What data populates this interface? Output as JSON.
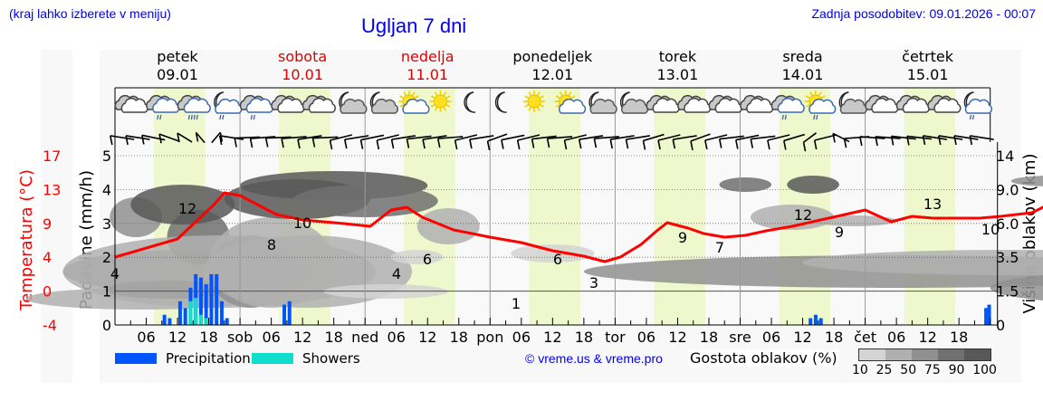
{
  "header": {
    "hint": "(kraj lahko izberete v meniju)",
    "title": "Ugljan 7 dni",
    "last_update": "Zadnja posodobitev: 09.01.2026 - 00:07"
  },
  "days": [
    {
      "name": "petek",
      "date": "09.01",
      "weekend": false,
      "abbr": ""
    },
    {
      "name": "sobota",
      "date": "10.01",
      "weekend": true,
      "abbr": "sob"
    },
    {
      "name": "nedelja",
      "date": "11.01",
      "weekend": true,
      "abbr": "ned"
    },
    {
      "name": "ponedeljek",
      "date": "12.01",
      "weekend": false,
      "abbr": "pon"
    },
    {
      "name": "torek",
      "date": "13.01",
      "weekend": false,
      "abbr": "tor"
    },
    {
      "name": "sreda",
      "date": "14.01",
      "weekend": false,
      "abbr": "sre"
    },
    {
      "name": "četrtek",
      "date": "15.01",
      "weekend": false,
      "abbr": "čet"
    }
  ],
  "weather_icons": [
    "cloudy",
    "cloudy-rain",
    "cloudy-heavy-rain",
    "night-cloud-rain",
    "cloudy-rain",
    "cloudy",
    "cloudy",
    "night-cloud",
    "night-cloud",
    "sun-cloud",
    "sun",
    "moon",
    "moon",
    "sun",
    "sun-cloud",
    "night-cloud",
    "night-cloud",
    "cloudy",
    "cloudy",
    "cloudy",
    "cloudy",
    "cloudy-rain",
    "sun-cloud-rain",
    "night-cloud",
    "cloudy",
    "cloudy",
    "cloudy",
    "night-cloud-rain"
  ],
  "axes": {
    "temp_title": "Temperatura (°C)",
    "temp_ticks": [
      "17",
      "13",
      "9",
      "4",
      "0",
      "-4"
    ],
    "precip_title": "Padavine (mm/h)",
    "precip_ticks": [
      "5",
      "4",
      "3",
      "2",
      "1",
      "0"
    ],
    "cloud_title": "Višina oblakov (km)",
    "cloud_ticks": [
      "14",
      "9.0",
      "6.0",
      "3.5",
      "1.5",
      "0"
    ],
    "hour_ticks": [
      "06",
      "12",
      "18"
    ]
  },
  "legend": {
    "precipitation": "Precipitation",
    "showers": "Showers",
    "precipitation_color": "#0055ff",
    "showers_color": "#11ddcc",
    "copyright": "© vreme.us & vreme.pro",
    "density_label": "Gostota oblakov (%)",
    "density_ticks": [
      "10",
      "25",
      "50",
      "75",
      "90",
      "100"
    ],
    "density_colors": [
      "#d4d4d4",
      "#b0b0b0",
      "#909090",
      "#707070",
      "#585858"
    ]
  },
  "chart_data": {
    "type": "line",
    "title": "Ugljan 7 dni",
    "xlabel": "",
    "ylabel": "Temperatura (°C)",
    "x": [
      "09.01 00",
      "09.01 06",
      "09.01 12",
      "09.01 18",
      "10.01 00",
      "10.01 06",
      "10.01 12",
      "10.01 18",
      "11.01 00",
      "11.01 06",
      "11.01 12",
      "11.01 18",
      "12.01 00",
      "12.01 06",
      "12.01 12",
      "12.01 18",
      "13.01 00",
      "13.01 06",
      "13.01 12",
      "13.01 18",
      "14.01 00",
      "14.01 06",
      "14.01 12",
      "14.01 18",
      "15.01 00",
      "15.01 06",
      "15.01 12",
      "15.01 18",
      "16.01 00"
    ],
    "series": [
      {
        "name": "Temperatura (°C)",
        "values": [
          4,
          6,
          12,
          11,
          8,
          8,
          10,
          7,
          5,
          4,
          6,
          2,
          1,
          1,
          6,
          3,
          4,
          6,
          9,
          7,
          7,
          8,
          12,
          9,
          10,
          10,
          13,
          10,
          10
        ]
      },
      {
        "name": "Precipitation (mm/h)",
        "values": [
          0,
          0,
          0.3,
          1.5,
          0.7,
          0,
          0,
          0,
          0,
          0,
          0,
          0,
          0,
          0,
          0,
          0,
          0,
          0,
          0,
          0,
          0,
          0,
          0.2,
          0,
          0,
          0,
          0,
          0,
          0.6
        ]
      },
      {
        "name": "Showers (mm/h)",
        "values": [
          0,
          0,
          0,
          0.8,
          0,
          0,
          0,
          0,
          0,
          0,
          0,
          0,
          0,
          0,
          0,
          0,
          0,
          0,
          0,
          0,
          0,
          0,
          0,
          0,
          0,
          0,
          0,
          0,
          0
        ]
      }
    ],
    "temp_labels": [
      {
        "at": "09.01 00",
        "value": 4
      },
      {
        "at": "09.01 14",
        "value": 12
      },
      {
        "at": "10.01 06",
        "value": 8
      },
      {
        "at": "10.01 12",
        "value": 10
      },
      {
        "at": "11.01 01",
        "value": 4
      },
      {
        "at": "11.01 12",
        "value": 6
      },
      {
        "at": "12.01 03",
        "value": 1
      },
      {
        "at": "12.01 12",
        "value": 6
      },
      {
        "at": "12.01 20",
        "value": 3
      },
      {
        "at": "13.01 13",
        "value": 9
      },
      {
        "at": "13.01 19",
        "value": 7
      },
      {
        "at": "14.01 12",
        "value": 12
      },
      {
        "at": "14.01 20",
        "value": 9
      },
      {
        "at": "15.01 12",
        "value": 13
      },
      {
        "at": "15.01 23",
        "value": 10
      }
    ],
    "y_ranges": {
      "precip": [
        0,
        5
      ],
      "temp": [
        -4,
        17
      ],
      "cloud_height_km": [
        0,
        14
      ]
    },
    "grid": true,
    "legend_position": "bottom"
  }
}
